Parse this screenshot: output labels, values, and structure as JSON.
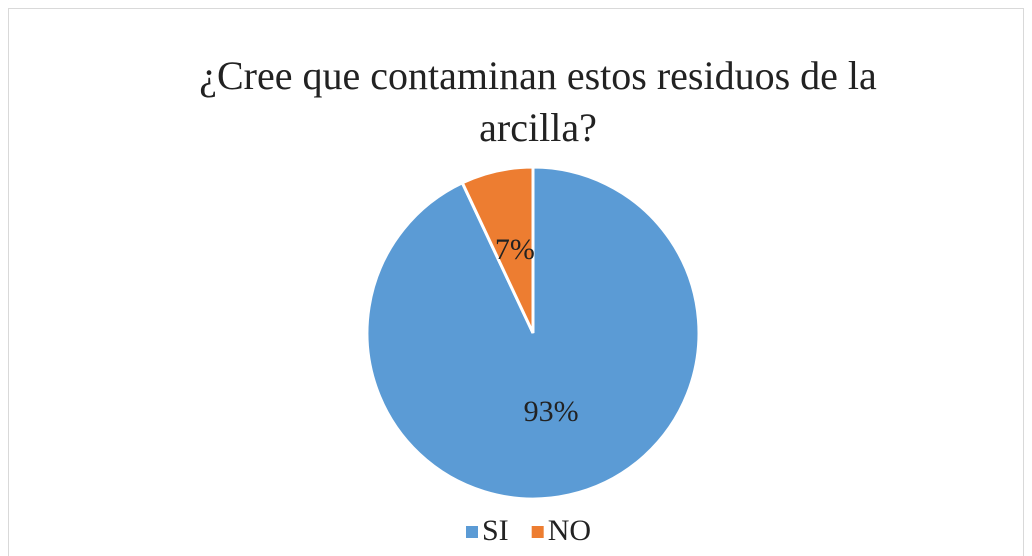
{
  "chart_data": {
    "type": "pie",
    "title": "¿Cree que contaminan estos residuos de la arcilla?",
    "categories": [
      "SI",
      "NO"
    ],
    "values": [
      93,
      7
    ],
    "value_labels": [
      "93%",
      "7%"
    ],
    "colors": [
      "#5b9bd5",
      "#ed7d31"
    ],
    "legend": "bottom"
  }
}
